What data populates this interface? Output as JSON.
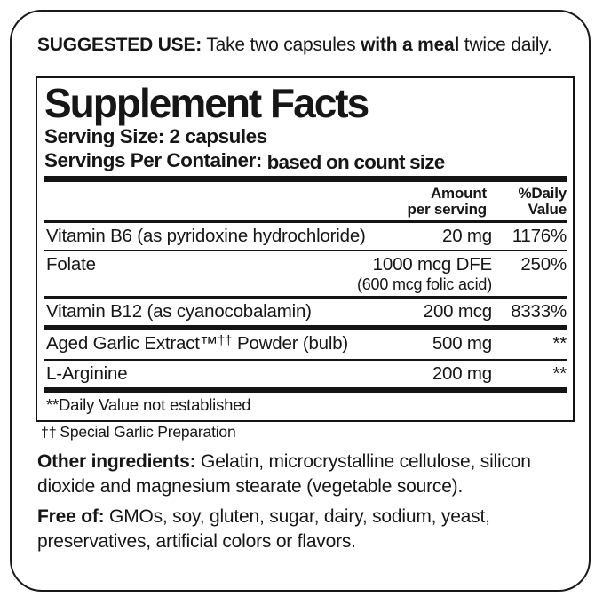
{
  "colors": {
    "ink": "#161616",
    "background": "#ffffff"
  },
  "suggested_use": {
    "label": "SUGGESTED USE:",
    "text_mid": " Take two capsules ",
    "bold_mid": "with a meal",
    "text_end": " twice daily."
  },
  "panel": {
    "title": "Supplement Facts",
    "serving_size_label": "Serving Size:",
    "serving_size_value": " 2 capsules",
    "servings_label": "Servings Per Container: ",
    "servings_value": "based on count size",
    "header": {
      "amount_line1": "Amount",
      "amount_line2": "per serving",
      "dv_line1": "%Daily",
      "dv_line2": "Value"
    },
    "rows": [
      {
        "name": "Vitamin B6 (as pyridoxine hydrochloride)",
        "amount": "20 mg",
        "dv": "1176%"
      },
      {
        "name": "Folate",
        "amount": "1000 mcg DFE",
        "amount_sub": "(600 mcg folic acid)",
        "dv": "250%"
      },
      {
        "name": "Vitamin B12 (as cyanocobalamin)",
        "amount": "200 mcg",
        "dv": "8333%"
      },
      {
        "name_pre": "Aged Garlic Extract™",
        "name_sup": "††",
        "name_post": " Powder (bulb)",
        "amount": "500 mg",
        "dv": "**"
      },
      {
        "name": "L-Arginine",
        "amount": "200 mg",
        "dv": "**"
      }
    ],
    "footnote": "**Daily Value not established"
  },
  "dagger_note": {
    "symbol": "††",
    "text": "Special Garlic Preparation"
  },
  "other_ingredients": {
    "label": "Other ingredients:",
    "text": " Gelatin, microcrystalline cellulose, silicon dioxide and magnesium stearate (vegetable source)."
  },
  "free_of": {
    "label": "Free of:",
    "text": " GMOs, soy, gluten, sugar, dairy, sodium, yeast, preservatives, artificial colors or flavors."
  }
}
